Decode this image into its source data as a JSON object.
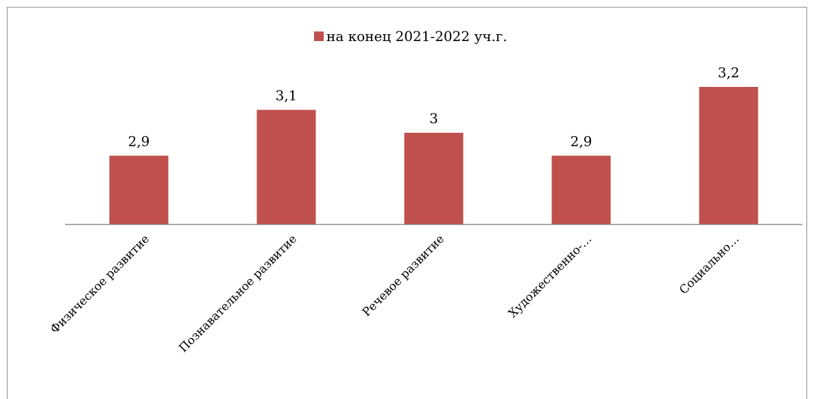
{
  "chart_data": {
    "type": "bar",
    "title": "",
    "xlabel": "",
    "ylabel": "",
    "categories": [
      "Физическое развитие",
      "Познавательное развитие",
      "Речевое развитие",
      "Художественно-…",
      "Социально…"
    ],
    "series": [
      {
        "name": "на конец 2021-2022 уч.г.",
        "color": "#c0504d",
        "values": [
          2.9,
          3.1,
          3,
          2.9,
          3.2
        ],
        "labels": [
          "2,9",
          "3,1",
          "3",
          "2,9",
          "3,2"
        ]
      }
    ],
    "ylim": [
      2.6,
      3.2
    ],
    "grid": false,
    "legend_position": "top"
  }
}
